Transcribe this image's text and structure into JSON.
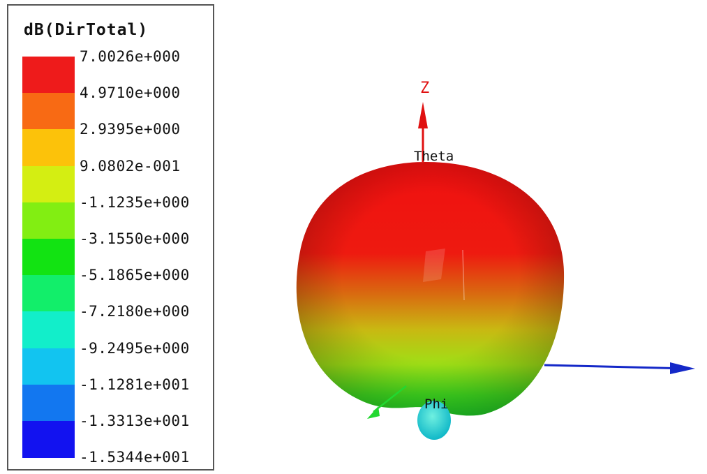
{
  "chart_data": {
    "type": "3d-radiation-pattern",
    "legend": {
      "title": "dB(DirTotal)",
      "tick_labels": [
        "7.0026e+000",
        "4.9710e+000",
        "2.9395e+000",
        "9.0802e-001",
        "-1.1235e+000",
        "-3.1550e+000",
        "-5.1865e+000",
        "-7.2180e+000",
        "-9.2495e+000",
        "-1.1281e+001",
        "-1.3313e+001",
        "-1.5344e+001"
      ],
      "colors": [
        "#ee1b1b",
        "#f86a14",
        "#fcc20a",
        "#d4ee12",
        "#82ee12",
        "#12e312",
        "#12ee6a",
        "#12eeca",
        "#12c4f0",
        "#1277f0",
        "#1212f0"
      ]
    },
    "max_value_db": 7.0026,
    "min_value_db": -15.344,
    "axes": {
      "z_label": "Z",
      "theta_label": "Theta",
      "phi_label": "Phi"
    }
  }
}
